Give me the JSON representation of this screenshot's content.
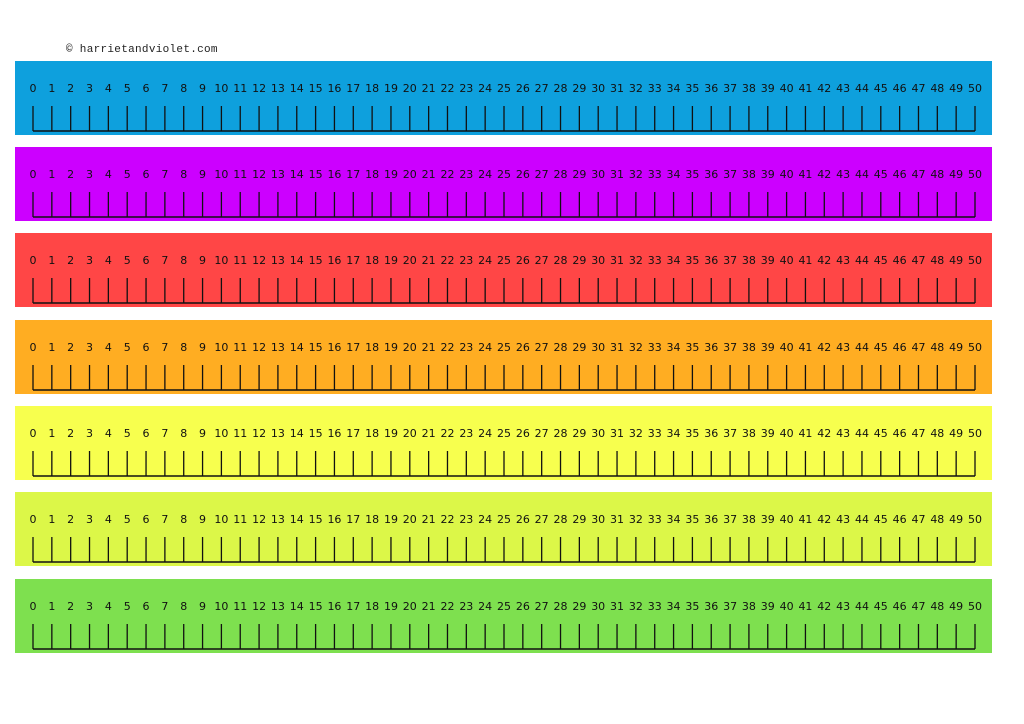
{
  "copyright": "© harrietandviolet.com",
  "number_line": {
    "start": 0,
    "end": 50,
    "step": 1,
    "labels": [
      "0",
      "1",
      "2",
      "3",
      "4",
      "5",
      "6",
      "7",
      "8",
      "9",
      "10",
      "11",
      "12",
      "13",
      "14",
      "15",
      "16",
      "17",
      "18",
      "19",
      "20",
      "21",
      "22",
      "23",
      "24",
      "25",
      "26",
      "27",
      "28",
      "29",
      "30",
      "31",
      "32",
      "33",
      "34",
      "35",
      "36",
      "37",
      "38",
      "39",
      "40",
      "41",
      "42",
      "43",
      "44",
      "45",
      "46",
      "47",
      "48",
      "49",
      "50"
    ]
  },
  "strips": [
    {
      "color": "#0ea0dd"
    },
    {
      "color": "#cc00ff"
    },
    {
      "color": "#ff4646"
    },
    {
      "color": "#ffad22"
    },
    {
      "color": "#f7ff4e"
    },
    {
      "color": "#dcf748"
    },
    {
      "color": "#7ee04f"
    }
  ]
}
